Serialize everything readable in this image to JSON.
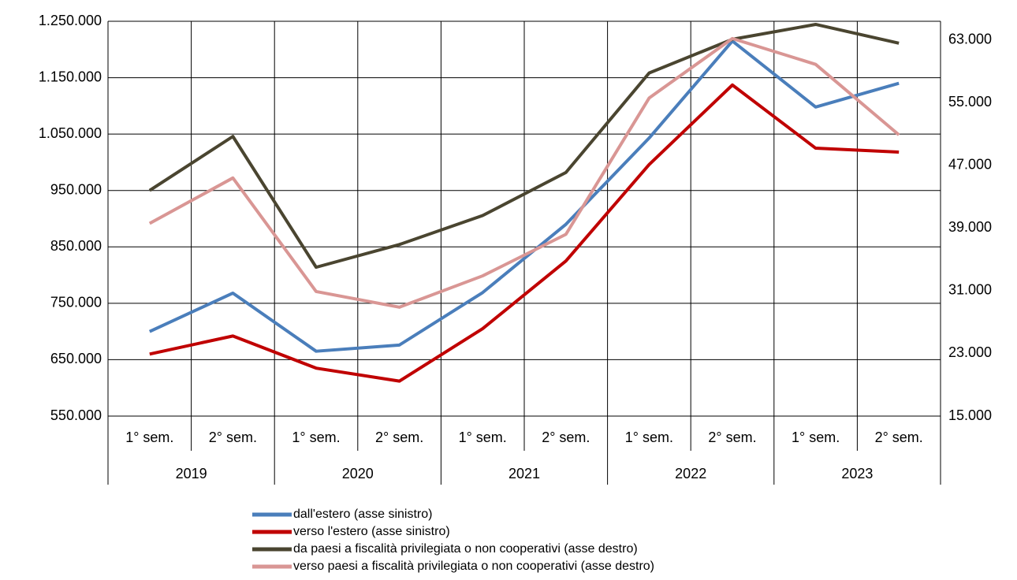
{
  "chart_data": {
    "type": "line",
    "categories": [
      "1° sem.",
      "2° sem.",
      "1° sem.",
      "2° sem.",
      "1° sem.",
      "2° sem.",
      "1° sem.",
      "2° sem.",
      "1° sem.",
      "2° sem."
    ],
    "groups": [
      "2019",
      "2020",
      "2021",
      "2022",
      "2023"
    ],
    "series": [
      {
        "name": "dall'estero (asse sinistro)",
        "color": "#4a7ebb",
        "values": [
          700000,
          768000,
          665000,
          676000,
          769000,
          890000,
          1043000,
          1215000,
          1098000,
          1140000
        ]
      },
      {
        "name": "verso l'estero (asse sinistro)",
        "color": "#c00000",
        "values": [
          660000,
          692000,
          635000,
          612000,
          705000,
          825000,
          996000,
          1137000,
          1025000,
          1018000
        ]
      },
      {
        "name": "da paesi a fiscalità privilegiata o non cooperativi (asse destro)",
        "color": "#4a4530",
        "axis": "y2",
        "values": [
          43800,
          50700,
          34000,
          36900,
          40600,
          46100,
          58800,
          63100,
          65000,
          62600
        ]
      },
      {
        "name": "verso paesi a fiscalità privilegiata o non cooperativi (asse destro)",
        "color": "#d99694",
        "axis": "y2",
        "values": [
          39600,
          45400,
          30900,
          28900,
          32900,
          38200,
          55600,
          63200,
          59900,
          50900
        ]
      }
    ],
    "ylim": [
      550000,
      1250000
    ],
    "yticks": [
      {
        "value": 550000,
        "label": "550.000"
      },
      {
        "value": 650000,
        "label": "650.000"
      },
      {
        "value": 750000,
        "label": "750.000"
      },
      {
        "value": 850000,
        "label": "850.000"
      },
      {
        "value": 950000,
        "label": "950.000"
      },
      {
        "value": 1050000,
        "label": "1.050.000"
      },
      {
        "value": 1150000,
        "label": "1.150.000"
      },
      {
        "value": 1250000,
        "label": "1.250.000"
      }
    ],
    "y2lim": [
      15000,
      65400
    ],
    "y2ticks": [
      {
        "value": 15000,
        "label": "15.000"
      },
      {
        "value": 23000,
        "label": "23.000"
      },
      {
        "value": 31000,
        "label": "31.000"
      },
      {
        "value": 39000,
        "label": "39.000"
      },
      {
        "value": 47000,
        "label": "47.000"
      },
      {
        "value": 55000,
        "label": "55.000"
      },
      {
        "value": 63000,
        "label": "63.000"
      }
    ],
    "grid": true
  }
}
